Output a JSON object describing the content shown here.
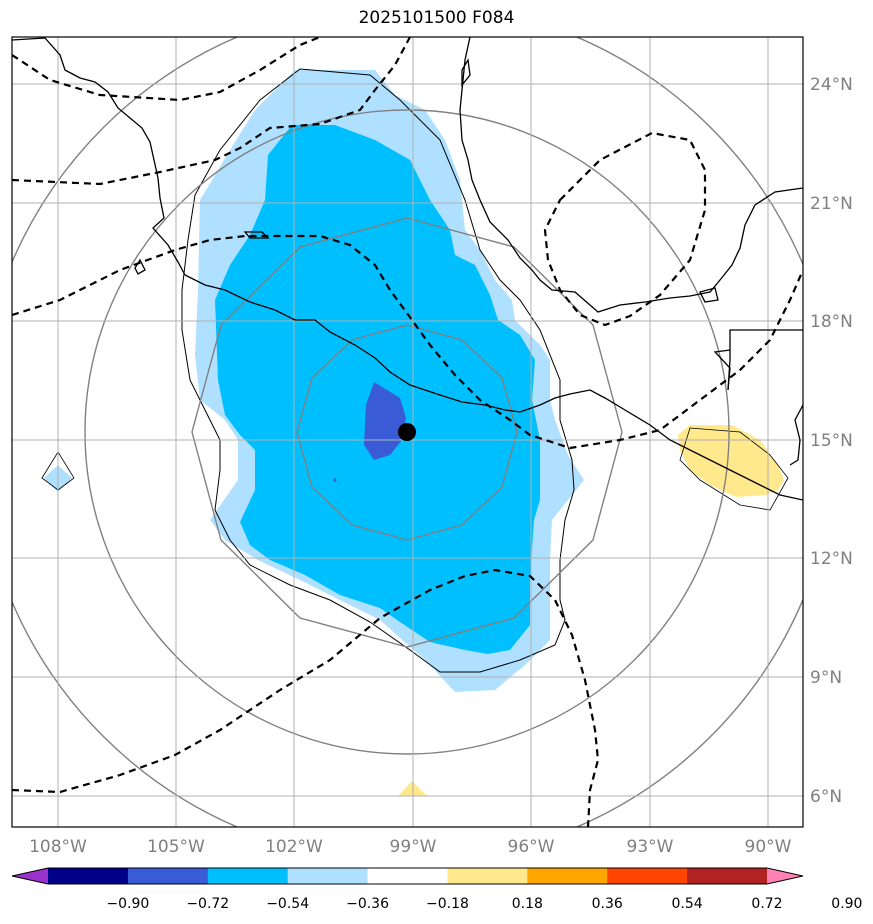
{
  "title": "2025101500 F084",
  "map": {
    "lon_range": [
      -110,
      -88.5
    ],
    "lat_range": [
      5.2,
      25.2
    ],
    "lon_ticks": [
      "108°W",
      "105°W",
      "102°W",
      "99°W",
      "96°W",
      "93°W",
      "90°W"
    ],
    "lat_ticks": [
      "24°N",
      "21°N",
      "18°N",
      "15°N",
      "12°N",
      "9°N",
      "6°N"
    ],
    "center_marker": {
      "lon": -99.0,
      "lat": 15.2,
      "label": "storm-center"
    }
  },
  "colorbar": {
    "labels": [
      "−0.90",
      "−0.72",
      "−0.54",
      "−0.36",
      "−0.18",
      "0.18",
      "0.36",
      "0.54",
      "0.72",
      "0.90"
    ],
    "colors": [
      "#9932cc",
      "#00008b",
      "#3a5bd6",
      "#00bfff",
      "#b0e0ff",
      "#ffffff",
      "#ffe98c",
      "#ffa500",
      "#ff4500",
      "#b22222",
      "#ff82b4"
    ],
    "palette": {
      "level1_neg": "#b0e0ff",
      "level2_neg": "#00bfff",
      "level3_neg": "#3a5bd6",
      "level1_pos": "#ffe98c"
    }
  }
}
